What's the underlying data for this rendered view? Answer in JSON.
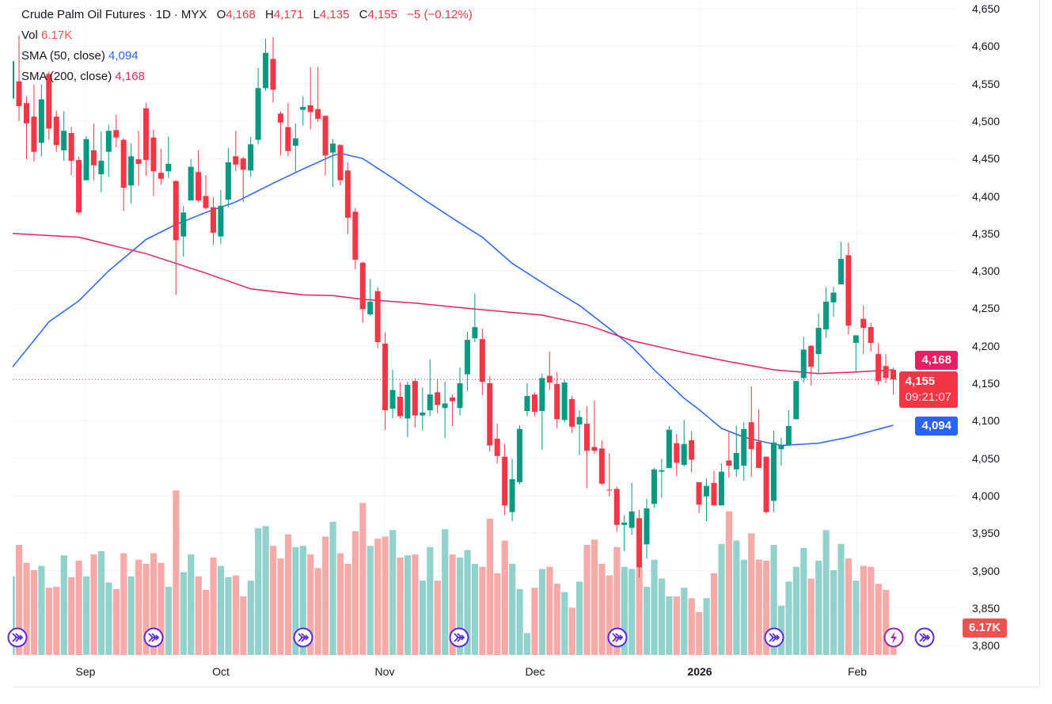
{
  "header": {
    "symbol": "Crude Palm Oil Futures",
    "interval": "1D",
    "exchange": "MYX",
    "o_label": "O",
    "o_value": "4,168",
    "h_label": "H",
    "h_value": "4,171",
    "l_label": "L",
    "l_value": "4,135",
    "c_label": "C",
    "c_value": "4,155",
    "change": "−5 (−0.12%)",
    "separator": "·"
  },
  "indicators": {
    "vol_label": "Vol",
    "vol_value": "6.17K",
    "sma50_label": "SMA (50, close)",
    "sma50_value": "4,094",
    "sma200_label": "SMA (200, close)",
    "sma200_value": "4,168"
  },
  "price_tags": {
    "sma200": "4,168",
    "last": "4,155",
    "countdown": "09:21:07",
    "sma50": "4,094",
    "volume": "6.17K"
  },
  "colors": {
    "up": "#089981",
    "down": "#f23645",
    "vol_up": "#92d2cc",
    "vol_down": "#f7a9a7",
    "sma50": "#2962ff",
    "sma200": "#e91e63",
    "event": "#5b2be0",
    "lightning": "#9c27b0"
  },
  "chart_data": {
    "type": "candlestick",
    "title": "Crude Palm Oil Futures · 1D · MYX",
    "y_ticks": [
      "3,800",
      "3,850",
      "3,900",
      "3,950",
      "4,000",
      "4,050",
      "4,100",
      "4,150",
      "4,200",
      "4,250",
      "4,300",
      "4,350",
      "4,400",
      "4,450",
      "4,500",
      "4,550",
      "4,600",
      "4,650"
    ],
    "ylim": [
      3800,
      4650
    ],
    "x_tick_labels": [
      "Sep",
      "Oct",
      "Nov",
      "Dec",
      "2026",
      "Feb"
    ],
    "grid": true,
    "last_price": 4155,
    "ohlc": [
      [
        4530,
        4585,
        4525,
        4580
      ],
      [
        4553,
        4614,
        4500,
        4520
      ],
      [
        4524,
        4533,
        4449,
        4497
      ],
      [
        4506,
        4549,
        4446,
        4459
      ],
      [
        4471,
        4549,
        4453,
        4529
      ],
      [
        4563,
        4566,
        4475,
        4490
      ],
      [
        4506,
        4514,
        4459,
        4468
      ],
      [
        4461,
        4513,
        4447,
        4487
      ],
      [
        4484,
        4492,
        4428,
        4447
      ],
      [
        4448,
        4452,
        4376,
        4378
      ],
      [
        4421,
        4480,
        4421,
        4476
      ],
      [
        4461,
        4496,
        4421,
        4441
      ],
      [
        4429,
        4486,
        4405,
        4447
      ],
      [
        4459,
        4495,
        4426,
        4487
      ],
      [
        4488,
        4508,
        4465,
        4478
      ],
      [
        4475,
        4477,
        4380,
        4411
      ],
      [
        4414,
        4470,
        4390,
        4453
      ],
      [
        4449,
        4487,
        4414,
        4443
      ],
      [
        4517,
        4524,
        4427,
        4448
      ],
      [
        4478,
        4489,
        4400,
        4433
      ],
      [
        4431,
        4463,
        4415,
        4423
      ],
      [
        4433,
        4479,
        4424,
        4443
      ],
      [
        4420,
        4421,
        4268,
        4341
      ],
      [
        4346,
        4387,
        4319,
        4378
      ],
      [
        4394,
        4449,
        4394,
        4439
      ],
      [
        4432,
        4461,
        4392,
        4394
      ],
      [
        4400,
        4428,
        4382,
        4384
      ],
      [
        4385,
        4398,
        4335,
        4351
      ],
      [
        4346,
        4408,
        4336,
        4387
      ],
      [
        4395,
        4464,
        4385,
        4445
      ],
      [
        4453,
        4487,
        4433,
        4442
      ],
      [
        4450,
        4452,
        4392,
        4435
      ],
      [
        4434,
        4479,
        4426,
        4469
      ],
      [
        4475,
        4571,
        4469,
        4544
      ],
      [
        4544,
        4610,
        4541,
        4591
      ],
      [
        4583,
        4612,
        4525,
        4542
      ],
      [
        4510,
        4513,
        4454,
        4498
      ],
      [
        4492,
        4524,
        4453,
        4460
      ],
      [
        4467,
        4497,
        4432,
        4477
      ],
      [
        4515,
        4533,
        4494,
        4519
      ],
      [
        4521,
        4572,
        4489,
        4512
      ],
      [
        4516,
        4572,
        4499,
        4503
      ],
      [
        4507,
        4507,
        4427,
        4454
      ],
      [
        4458,
        4476,
        4412,
        4470
      ],
      [
        4468,
        4469,
        4414,
        4421
      ],
      [
        4434,
        4445,
        4349,
        4371
      ],
      [
        4379,
        4384,
        4302,
        4315
      ],
      [
        4311,
        4312,
        4231,
        4249
      ],
      [
        4242,
        4289,
        4240,
        4259
      ],
      [
        4273,
        4278,
        4197,
        4205
      ],
      [
        4203,
        4218,
        4088,
        4114
      ],
      [
        4116,
        4168,
        4103,
        4141
      ],
      [
        4132,
        4151,
        4103,
        4106
      ],
      [
        4103,
        4152,
        4078,
        4148
      ],
      [
        4153,
        4157,
        4091,
        4107
      ],
      [
        4107,
        4144,
        4087,
        4111
      ],
      [
        4114,
        4182,
        4106,
        4135
      ],
      [
        4138,
        4156,
        4110,
        4121
      ],
      [
        4117,
        4152,
        4077,
        4123
      ],
      [
        4131,
        4135,
        4093,
        4126
      ],
      [
        4117,
        4171,
        4107,
        4150
      ],
      [
        4162,
        4219,
        4139,
        4208
      ],
      [
        4210,
        4270,
        4205,
        4225
      ],
      [
        4209,
        4223,
        4134,
        4152
      ],
      [
        4150,
        4160,
        4059,
        4067
      ],
      [
        4076,
        4096,
        4043,
        4053
      ],
      [
        4052,
        4069,
        3974,
        3987
      ],
      [
        3978,
        4049,
        3966,
        4022
      ],
      [
        4018,
        4094,
        4015,
        4089
      ],
      [
        4113,
        4150,
        4106,
        4133
      ],
      [
        4135,
        4138,
        4106,
        4112
      ],
      [
        4113,
        4163,
        4061,
        4157
      ],
      [
        4160,
        4192,
        4141,
        4151
      ],
      [
        4149,
        4165,
        4090,
        4102
      ],
      [
        4101,
        4155,
        4098,
        4151
      ],
      [
        4129,
        4133,
        4084,
        4092
      ],
      [
        4095,
        4114,
        4054,
        4105
      ],
      [
        4096,
        4119,
        4010,
        4060
      ],
      [
        4065,
        4127,
        4056,
        4060
      ],
      [
        4063,
        4074,
        4014,
        4016
      ],
      [
        4008,
        4056,
        3999,
        4007
      ],
      [
        4009,
        4012,
        3952,
        3961
      ],
      [
        3961,
        3974,
        3926,
        3964
      ],
      [
        3957,
        4017,
        3948,
        3979
      ],
      [
        3970,
        3981,
        3891,
        3904
      ],
      [
        3935,
        3996,
        3916,
        3983
      ],
      [
        3989,
        4037,
        3984,
        4035
      ],
      [
        4032,
        4049,
        3997,
        4034
      ],
      [
        4037,
        4093,
        4037,
        4088
      ],
      [
        4070,
        4082,
        4026,
        4044
      ],
      [
        4041,
        4101,
        4039,
        4069
      ],
      [
        4074,
        4086,
        4031,
        4048
      ],
      [
        4018,
        4018,
        3977,
        3988
      ],
      [
        3999,
        4023,
        3966,
        4013
      ],
      [
        4017,
        4033,
        3987,
        3987
      ],
      [
        3987,
        4043,
        3987,
        4032
      ],
      [
        4047,
        4085,
        4024,
        4040
      ],
      [
        4035,
        4093,
        4025,
        4057
      ],
      [
        4040,
        4098,
        4020,
        4089
      ],
      [
        4098,
        4146,
        4025,
        4062
      ],
      [
        4072,
        4115,
        4037,
        4037
      ],
      [
        4052,
        4052,
        3976,
        3978
      ],
      [
        3993,
        4087,
        3978,
        4071
      ],
      [
        4062,
        4077,
        4040,
        4067
      ],
      [
        4067,
        4114,
        4067,
        4093
      ],
      [
        4102,
        4153,
        4102,
        4153
      ],
      [
        4157,
        4212,
        4151,
        4195
      ],
      [
        4200,
        4201,
        4147,
        4172
      ],
      [
        4189,
        4243,
        4163,
        4224
      ],
      [
        4222,
        4278,
        4211,
        4259
      ],
      [
        4258,
        4279,
        4239,
        4271
      ],
      [
        4282,
        4339,
        4282,
        4316
      ],
      [
        4321,
        4338,
        4215,
        4227
      ],
      [
        4204,
        4214,
        4166,
        4214
      ],
      [
        4236,
        4254,
        4189,
        4224
      ],
      [
        4225,
        4231,
        4192,
        4204
      ],
      [
        4189,
        4203,
        4148,
        4153
      ],
      [
        4173,
        4189,
        4150,
        4157
      ],
      [
        4168,
        4171,
        4135,
        4155
      ]
    ],
    "volume_k": [
      25.5,
      35.7,
      29.9,
      27.5,
      28.9,
      21.8,
      22.1,
      32.3,
      25.2,
      30.6,
      25.5,
      32.6,
      33.7,
      23.5,
      21.4,
      33.0,
      25.5,
      30.9,
      29.6,
      33.0,
      29.9,
      22.1,
      53.4,
      26.9,
      32.6,
      25.5,
      21.1,
      31.6,
      28.9,
      25.2,
      25.8,
      19.0,
      24.1,
      41.1,
      41.8,
      35.4,
      31.3,
      39.1,
      35.0,
      35.4,
      32.6,
      28.2,
      38.4,
      43.2,
      33.0,
      29.6,
      40.1,
      49.3,
      35.4,
      37.7,
      38.4,
      40.5,
      31.6,
      32.3,
      32.6,
      24.1,
      35.0,
      24.1,
      40.8,
      32.6,
      31.6,
      34.0,
      29.6,
      28.6,
      44.2,
      26.5,
      37.1,
      29.6,
      21.4,
      7.1,
      21.8,
      27.9,
      28.6,
      23.1,
      20.4,
      15.3,
      23.8,
      35.7,
      37.4,
      29.6,
      25.8,
      35.0,
      28.6,
      27.9,
      28.2,
      22.1,
      30.9,
      24.8,
      19.0,
      19.0,
      21.8,
      18.4,
      13.9,
      18.4,
      26.5,
      36.0,
      46.6,
      37.1,
      30.9,
      39.4,
      30.9,
      30.6,
      35.7,
      16.0,
      23.8,
      28.6,
      34.7,
      24.8,
      30.6,
      40.5,
      27.5,
      36.0,
      31.3,
      24.1,
      28.9,
      28.6,
      23.1,
      21.1,
      6.17
    ],
    "series": [
      {
        "name": "SMA (50, close)",
        "points": [
          [
            0,
            4170
          ],
          [
            5,
            4232
          ],
          [
            9,
            4260
          ],
          [
            13,
            4300
          ],
          [
            18,
            4342
          ],
          [
            22,
            4362
          ],
          [
            26,
            4378
          ],
          [
            30,
            4392
          ],
          [
            35,
            4417
          ],
          [
            39,
            4436
          ],
          [
            43,
            4454
          ],
          [
            44,
            4457
          ],
          [
            47,
            4450
          ],
          [
            51,
            4424
          ],
          [
            56,
            4390
          ],
          [
            60,
            4364
          ],
          [
            63,
            4345
          ],
          [
            67,
            4310
          ],
          [
            72,
            4278
          ],
          [
            76,
            4254
          ],
          [
            80,
            4223
          ],
          [
            83,
            4199
          ],
          [
            86,
            4168
          ],
          [
            90,
            4130
          ],
          [
            92,
            4115
          ],
          [
            95,
            4090
          ],
          [
            98,
            4078
          ],
          [
            101,
            4071
          ],
          [
            103,
            4067
          ],
          [
            108,
            4070
          ],
          [
            112,
            4078
          ],
          [
            115,
            4086
          ],
          [
            118,
            4094
          ]
        ]
      },
      {
        "name": "SMA (200, close)",
        "points": [
          [
            0,
            4350
          ],
          [
            9,
            4345
          ],
          [
            18,
            4323
          ],
          [
            26,
            4297
          ],
          [
            32,
            4276
          ],
          [
            39,
            4268
          ],
          [
            43,
            4267
          ],
          [
            47,
            4262
          ],
          [
            54,
            4257
          ],
          [
            62,
            4249
          ],
          [
            71,
            4241
          ],
          [
            77,
            4228
          ],
          [
            83,
            4207
          ],
          [
            90,
            4191
          ],
          [
            96,
            4179
          ],
          [
            102,
            4168
          ],
          [
            108,
            4163
          ],
          [
            113,
            4165
          ],
          [
            118,
            4168
          ]
        ]
      }
    ]
  }
}
